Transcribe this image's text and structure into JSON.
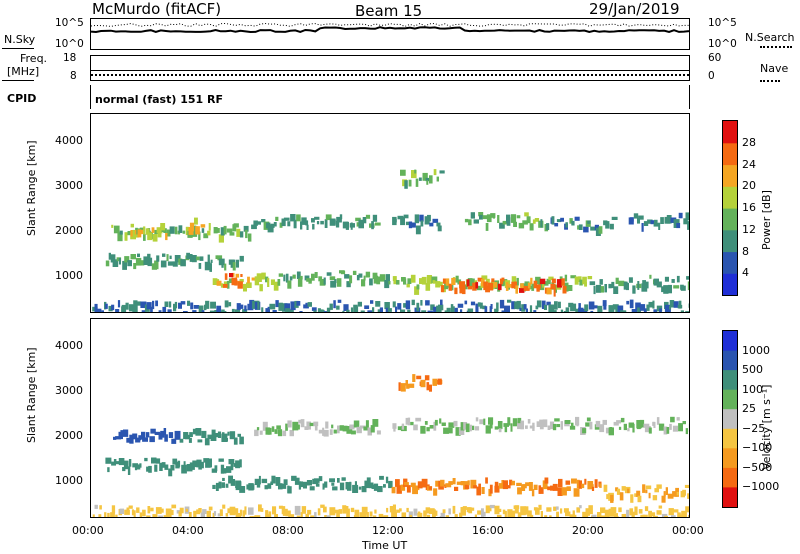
{
  "header": {
    "title": "McMurdo (fitACF)",
    "beam": "Beam 15",
    "date": "29/Jan/2019"
  },
  "top_panels": {
    "nsky_label": "N.Sky",
    "nsearch_label": "N.Search",
    "nsky_ticks": [
      "10^5",
      "10^0"
    ],
    "freq_label_1": "Freq.",
    "freq_label_2": "[MHz]",
    "freq_ticks": [
      "18",
      "8"
    ],
    "nave_label": "Nave",
    "nave_ticks": [
      "60",
      "0"
    ],
    "cpid_label": "CPID",
    "cpid_value": "normal (fast) 151 RF"
  },
  "colors": {
    "power_scale": [
      "#1f2fd6",
      "#2a55b0",
      "#3f8f7a",
      "#63b25a",
      "#b5d23a",
      "#f5a623",
      "#f56a12",
      "#e01010"
    ],
    "velocity_scale": [
      "#1f2fd6",
      "#2a55b0",
      "#3f8f7a",
      "#63b25a",
      "#c0c0c0",
      "#f5c542",
      "#f59a1f",
      "#f56a12",
      "#e01010"
    ]
  },
  "chart_data": [
    {
      "type": "heatmap",
      "name": "power",
      "xlabel": "",
      "ylabel": "Slant Range [km]",
      "ylim": [
        200,
        4600
      ],
      "yticks": [
        "1000",
        "2000",
        "3000",
        "4000"
      ],
      "colorbar_label": "Power [dB]",
      "colorbar_ticks": [
        "4",
        "8",
        "12",
        "16",
        "20",
        "24",
        "28"
      ],
      "colorbar_range": [
        0,
        32
      ],
      "bands": [
        {
          "t0": 0.8,
          "t1": 6.5,
          "r": 2050,
          "v": 14
        },
        {
          "t0": 1.5,
          "t1": 3.0,
          "r": 2050,
          "v": 20
        },
        {
          "t0": 3.8,
          "t1": 4.4,
          "r": 2200,
          "v": 22
        },
        {
          "t0": 6.5,
          "t1": 11.5,
          "r": 2250,
          "v": 11
        },
        {
          "t0": 12.0,
          "t1": 14.0,
          "r": 2250,
          "v": 9
        },
        {
          "t0": 15.0,
          "t1": 18.0,
          "r": 2300,
          "v": 14
        },
        {
          "t0": 18.0,
          "t1": 21.0,
          "r": 2200,
          "v": 10
        },
        {
          "t0": 21.5,
          "t1": 24.0,
          "r": 2300,
          "v": 9
        },
        {
          "t0": 12.3,
          "t1": 14.0,
          "r": 3250,
          "v": 14
        },
        {
          "t0": 0.5,
          "t1": 6.0,
          "r": 1400,
          "v": 12
        },
        {
          "t0": 4.8,
          "t1": 7.5,
          "r": 950,
          "v": 18
        },
        {
          "t0": 5.2,
          "t1": 6.0,
          "r": 950,
          "v": 27
        },
        {
          "t0": 7.5,
          "t1": 12.0,
          "r": 1000,
          "v": 12
        },
        {
          "t0": 12.0,
          "t1": 20.0,
          "r": 900,
          "v": 16
        },
        {
          "t0": 14.0,
          "t1": 19.0,
          "r": 850,
          "v": 26
        },
        {
          "t0": 20.0,
          "t1": 24.0,
          "r": 900,
          "v": 11
        },
        {
          "t0": 0.0,
          "t1": 24.0,
          "r": 350,
          "v": 8
        }
      ]
    },
    {
      "type": "heatmap",
      "name": "velocity",
      "xlabel": "Time UT",
      "ylabel": "Slant Range [km]",
      "ylim": [
        200,
        4600
      ],
      "yticks": [
        "1000",
        "2000",
        "3000",
        "4000"
      ],
      "xticks": [
        "00:00",
        "04:00",
        "08:00",
        "12:00",
        "16:00",
        "20:00",
        "00:00"
      ],
      "xlim": [
        0,
        24
      ],
      "colorbar_label": "Velocity [m s⁻¹]",
      "colorbar_ticks": [
        "1000",
        "500",
        "100",
        "25",
        "−25",
        "−100",
        "−500",
        "−1000"
      ],
      "bands": [
        {
          "t0": 0.8,
          "t1": 3.5,
          "r": 2050,
          "v": 500
        },
        {
          "t0": 3.5,
          "t1": 6.0,
          "r": 2050,
          "v": 100
        },
        {
          "t0": 6.5,
          "t1": 11.5,
          "r": 2250,
          "v": 0
        },
        {
          "t0": 12.0,
          "t1": 24.0,
          "r": 2300,
          "v": 0
        },
        {
          "t0": 12.3,
          "t1": 14.0,
          "r": 3250,
          "v": -300
        },
        {
          "t0": 0.5,
          "t1": 6.0,
          "r": 1400,
          "v": 150
        },
        {
          "t0": 4.8,
          "t1": 12.0,
          "r": 1000,
          "v": 150
        },
        {
          "t0": 12.0,
          "t1": 20.5,
          "r": 950,
          "v": -300
        },
        {
          "t0": 20.5,
          "t1": 24.0,
          "r": 800,
          "v": -60
        },
        {
          "t0": 0.0,
          "t1": 24.0,
          "r": 350,
          "v": -40
        }
      ]
    }
  ]
}
